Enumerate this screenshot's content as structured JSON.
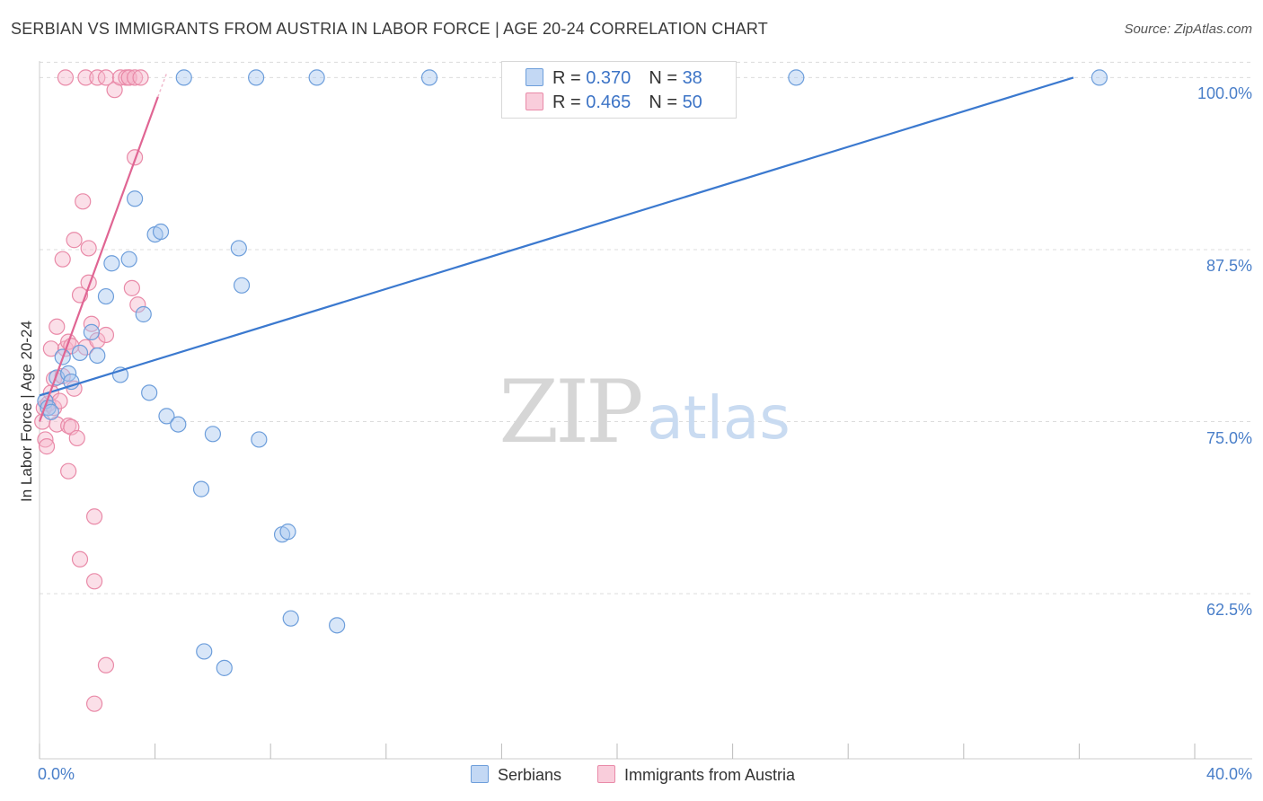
{
  "title": "SERBIAN VS IMMIGRANTS FROM AUSTRIA IN LABOR FORCE | AGE 20-24 CORRELATION CHART",
  "source": "Source: ZipAtlas.com",
  "watermark": {
    "zip": "ZIP",
    "atlas": "atlas"
  },
  "legend": {
    "series1": {
      "r_label": "R = ",
      "r_value": "0.370",
      "n_label": "N = ",
      "n_value": "38"
    },
    "series2": {
      "r_label": "R = ",
      "r_value": "0.465",
      "n_label": "N = ",
      "n_value": "50"
    }
  },
  "bottom_legend": {
    "series1": "Serbians",
    "series2": "Immigrants from Austria"
  },
  "colors": {
    "serbian_fill": "#a9c7ef",
    "serbian_stroke": "#6d9edb",
    "serbian_line": "#3b79cf",
    "austria_fill": "#f6b9cc",
    "austria_stroke": "#e98aa8",
    "austria_line": "#e06593",
    "tick_text": "#4a7fc9",
    "grid": "#dcdcdc"
  },
  "chart_data": {
    "type": "scatter",
    "title": "SERBIAN VS IMMIGRANTS FROM AUSTRIA IN LABOR FORCE | AGE 20-24 CORRELATION CHART",
    "xlabel": "",
    "ylabel": "In Labor Force | Age 20-24",
    "xlim": [
      0,
      40
    ],
    "ylim": [
      50.5,
      101.2
    ],
    "x_tick_labels": [
      "0.0%",
      "40.0%"
    ],
    "y_ticks": [
      62.5,
      75.0,
      87.5,
      100.0
    ],
    "y_tick_labels": [
      "62.5%",
      "75.0%",
      "87.5%",
      "100.0%"
    ],
    "grid": true,
    "series": [
      {
        "name": "Serbians",
        "r": 0.37,
        "n": 38,
        "trend": {
          "x": [
            0.0,
            35.8
          ],
          "y": [
            76.9,
            100.0
          ]
        },
        "points": [
          [
            0.2,
            76.5
          ],
          [
            0.3,
            76.0
          ],
          [
            0.4,
            75.7
          ],
          [
            0.6,
            78.2
          ],
          [
            0.8,
            79.7
          ],
          [
            1.0,
            78.5
          ],
          [
            1.1,
            77.9
          ],
          [
            1.4,
            80.0
          ],
          [
            1.8,
            81.5
          ],
          [
            2.0,
            79.8
          ],
          [
            2.3,
            84.1
          ],
          [
            2.5,
            86.5
          ],
          [
            2.8,
            78.4
          ],
          [
            3.1,
            86.8
          ],
          [
            3.3,
            91.2
          ],
          [
            3.6,
            82.8
          ],
          [
            3.8,
            77.1
          ],
          [
            4.0,
            88.6
          ],
          [
            4.2,
            88.8
          ],
          [
            4.4,
            75.4
          ],
          [
            4.8,
            74.8
          ],
          [
            5.0,
            100.0
          ],
          [
            5.6,
            70.1
          ],
          [
            5.7,
            58.3
          ],
          [
            6.0,
            74.1
          ],
          [
            6.4,
            57.1
          ],
          [
            6.9,
            87.6
          ],
          [
            7.0,
            84.9
          ],
          [
            7.5,
            100.0
          ],
          [
            7.6,
            73.7
          ],
          [
            8.4,
            66.8
          ],
          [
            8.6,
            67.0
          ],
          [
            8.7,
            60.7
          ],
          [
            9.6,
            100.0
          ],
          [
            10.3,
            60.2
          ],
          [
            13.5,
            100.0
          ],
          [
            26.2,
            100.0
          ],
          [
            36.7,
            100.0
          ]
        ]
      },
      {
        "name": "Immigrants from Austria",
        "r": 0.465,
        "n": 50,
        "trend": {
          "x": [
            0.0,
            4.1
          ],
          "y": [
            75.0,
            98.6
          ]
        },
        "trend_dashed": {
          "x": [
            4.1,
            4.4
          ],
          "y": [
            98.6,
            100.3
          ]
        },
        "points": [
          [
            0.1,
            75.0
          ],
          [
            0.15,
            76.0
          ],
          [
            0.2,
            73.7
          ],
          [
            0.25,
            73.2
          ],
          [
            0.3,
            76.3
          ],
          [
            0.4,
            77.1
          ],
          [
            0.4,
            80.3
          ],
          [
            0.5,
            76.0
          ],
          [
            0.5,
            78.1
          ],
          [
            0.6,
            81.9
          ],
          [
            0.6,
            74.8
          ],
          [
            0.7,
            76.5
          ],
          [
            0.8,
            78.3
          ],
          [
            0.8,
            86.8
          ],
          [
            0.9,
            80.3
          ],
          [
            0.9,
            100.0
          ],
          [
            1.0,
            80.8
          ],
          [
            1.0,
            74.7
          ],
          [
            1.0,
            71.4
          ],
          [
            1.1,
            80.5
          ],
          [
            1.1,
            74.6
          ],
          [
            1.2,
            77.4
          ],
          [
            1.2,
            88.2
          ],
          [
            1.3,
            73.8
          ],
          [
            1.4,
            84.2
          ],
          [
            1.4,
            65.0
          ],
          [
            1.5,
            91.0
          ],
          [
            1.6,
            100.0
          ],
          [
            1.6,
            80.4
          ],
          [
            1.7,
            85.1
          ],
          [
            1.7,
            87.6
          ],
          [
            1.8,
            82.1
          ],
          [
            1.9,
            68.1
          ],
          [
            1.9,
            63.4
          ],
          [
            1.9,
            54.5
          ],
          [
            2.0,
            100.0
          ],
          [
            2.0,
            80.9
          ],
          [
            2.3,
            100.0
          ],
          [
            2.3,
            81.3
          ],
          [
            2.3,
            57.3
          ],
          [
            2.6,
            99.1
          ],
          [
            2.8,
            100.0
          ],
          [
            3.0,
            100.0
          ],
          [
            3.1,
            100.0
          ],
          [
            3.1,
            100.0
          ],
          [
            3.2,
            84.7
          ],
          [
            3.3,
            100.0
          ],
          [
            3.3,
            94.2
          ],
          [
            3.4,
            83.5
          ],
          [
            3.5,
            100.0
          ]
        ]
      }
    ]
  }
}
